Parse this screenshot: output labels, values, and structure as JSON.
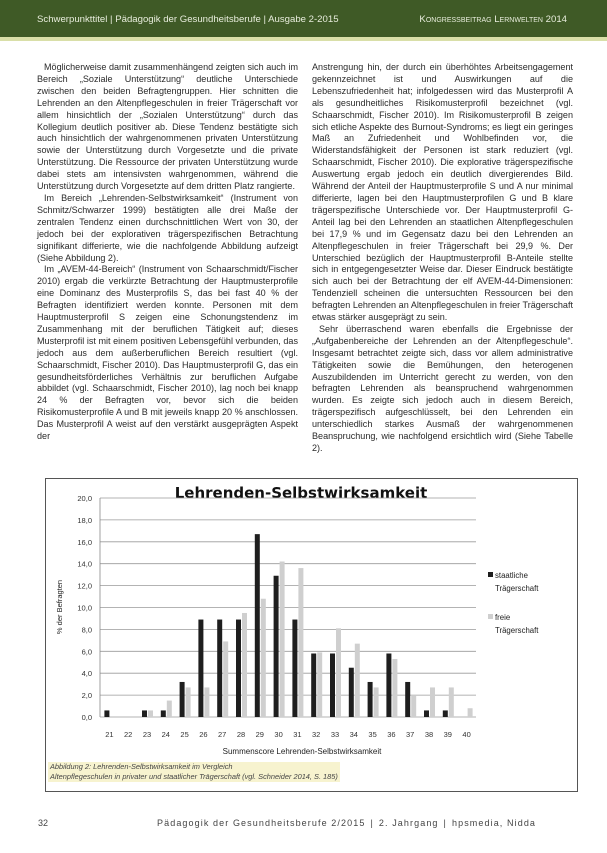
{
  "header": {
    "left": "Schwerpunkttitel | Pädagogik der Gesundheitsberufe | Ausgabe 2-2015",
    "right": "Kongressbeitrag Lernwelten 2014",
    "color": "#3f5a26"
  },
  "left_column": {
    "paragraphs": [
      "Möglicherweise damit zusammenhängend zeigten sich auch im Bereich „Soziale Unterstützung“ deutliche Unterschiede zwischen den beiden Befragtengruppen. Hier schnitten die Lehrenden an den Altenpflegeschulen in freier Trägerschaft vor allem hinsichtlich der „Sozialen Unterstützung“ durch das Kollegium deutlich positiver ab. Diese Tendenz bestätigte sich auch hinsichtlich der wahrgenommenen privaten Unterstützung sowie der Unterstützung durch Vorgesetzte und die private Unterstützung. Die Ressource der privaten Unterstützung wurde dabei stets am intensivsten wahrgenommen, während die Unterstützung durch Vorgesetzte auf dem dritten Platz rangierte.",
      "Im Bereich „Lehrenden-Selbstwirksamkeit“ (Instrument von Schmitz/Schwarzer 1999) bestätigten alle drei Maße der zentralen Tendenz einen durchschnittlichen Wert von 30, der jedoch bei der explorativen trägerspezifischen Betrachtung signifikant differierte, wie die nachfolgende Abbildung aufzeigt (Siehe Abbildung 2).",
      "Im „AVEM-44-Bereich“ (Instrument von Schaarschmidt/Fischer 2010) ergab die verkürzte Betrachtung der Hauptmusterprofile eine Dominanz des Musterprofils S, das bei fast 40 % der Befragten identifiziert werden konnte. Personen mit dem Hauptmusterprofil S zeigen eine Schonungstendenz im Zusammenhang mit der beruflichen Tätigkeit auf; dieses Musterprofil ist mit einem positiven Lebensgefühl verbunden, das jedoch aus dem außerberuflichen Bereich resultiert (vgl. Schaarschmidt, Fischer 2010). Das Hauptmusterprofil G, das ein gesundheitsförderliches Verhältnis zur beruflichen Aufgabe abbildet (vgl. Schaarschmidt, Fischer 2010), lag noch bei knapp 24 % der Befragten vor, bevor sich die beiden Risikomusterprofile A und B mit jeweils knapp 20 % anschlossen. Das Musterprofil A weist auf den verstärkt ausgeprägten Aspekt der"
    ]
  },
  "right_column": {
    "paragraphs": [
      "Anstrengung hin, der durch ein überhöhtes Arbeitsengagement gekennzeichnet ist und Auswirkungen auf die Lebenszufriedenheit hat; infolgedessen wird das Musterprofil A als gesundheitliches Risikomusterprofil bezeichnet (vgl. Schaarschmidt, Fischer 2010). Im Risikomusterprofil B zeigen sich etliche Aspekte des Burnout-Syndroms; es liegt ein geringes Maß an Zufriedenheit und Wohlbefinden vor, die Widerstandsfähigkeit der Personen ist stark reduziert (vgl. Schaarschmidt, Fischer 2010). Die explorative trägerspezifische Auswertung ergab jedoch ein deutlich divergierendes Bild. Während der Anteil der Hauptmusterprofile S und A nur minimal differierte, lagen bei den Hauptmusterprofilen G und B klare trägerspezifische Unterschiede vor. Der Hauptmusterprofil G-Anteil lag bei den Lehrenden an staatlichen Altenpflegeschulen bei 17,9 % und im Gegensatz dazu bei den Lehrenden an Altenpflegeschulen in freier Trägerschaft bei 29,9 %. Der Unterschied bezüglich der Hauptmusterprofil B-Anteile stellte sich in entgegengesetzter Weise dar. Dieser Eindruck bestätigte sich auch bei der Betrachtung der elf AVEM-44-Dimensionen: Tendenziell scheinen die untersuchten Ressourcen bei den befragten Lehrenden an Altenpflegeschulen in freier Trägerschaft etwas stärker ausgeprägt zu sein.",
      "Sehr überraschend waren ebenfalls die Ergebnisse der „Aufgabenbereiche der Lehrenden an der Altenpflegeschule“. Insgesamt betrachtet zeigte sich, dass vor allem administrative Tätigkeiten sowie die Bemühungen, den heterogenen Auszubildenden im Unterricht gerecht zu werden, von den befragten Lehrenden als beanspruchend wahrgenommen wurden. Es zeigte sich jedoch auch in diesem Bereich, trägerspezifisch aufgeschlüsselt, bei den Lehrenden ein unterschiedlich starkes Ausmaß der wahrgenommenen Beanspruchung, wie nachfolgend ersichtlich wird (Siehe Tabelle 2)."
    ]
  },
  "chart_data": {
    "type": "bar",
    "title": "Lehrenden-Selbstwirksamkeit",
    "xlabel": "Summenscore Lehrenden-Selbstwirksamkeit",
    "ylabel": "% der Befragten",
    "ylim": [
      0,
      20
    ],
    "yticks": [
      "0,0",
      "2,0",
      "4,0",
      "6,0",
      "8,0",
      "10,0",
      "12,0",
      "14,0",
      "16,0",
      "18,0",
      "20,0"
    ],
    "grid": true,
    "legend_position": "right",
    "categories": [
      "21",
      "22",
      "23",
      "24",
      "25",
      "26",
      "27",
      "28",
      "29",
      "30",
      "31",
      "32",
      "33",
      "34",
      "35",
      "36",
      "37",
      "38",
      "39",
      "40"
    ],
    "series": [
      {
        "name": "staatliche Trägerschaft",
        "color": "#1e1e1e",
        "values": [
          0.6,
          0,
          0.6,
          0.6,
          3.2,
          8.9,
          8.9,
          8.9,
          16.7,
          12.9,
          8.9,
          5.8,
          5.8,
          4.5,
          3.2,
          5.8,
          3.2,
          0.6,
          0.6,
          0
        ]
      },
      {
        "name": "freie Trägerschaft",
        "color": "#cfcfcf",
        "values": [
          0,
          0,
          0.6,
          1.5,
          2.7,
          2.7,
          6.9,
          9.5,
          10.8,
          14.2,
          13.6,
          5.9,
          8.1,
          6.7,
          2.7,
          5.3,
          2.0,
          2.7,
          2.7,
          0.8
        ]
      }
    ]
  },
  "caption": {
    "line1": "Abbildung 2: Lehrenden-Selbstwirksamkeit im Vergleich",
    "line2": "Altenpflegeschulen in privater und staatlicher Trägerschaft (vgl. Schneider 2014, S. 185)"
  },
  "footer": {
    "page_number": "32",
    "publication": "Pädagogik der Gesundheitsberufe 2/2015",
    "volume": "2. Jahrgang",
    "publisher": "hpsmedia, Nidda"
  }
}
